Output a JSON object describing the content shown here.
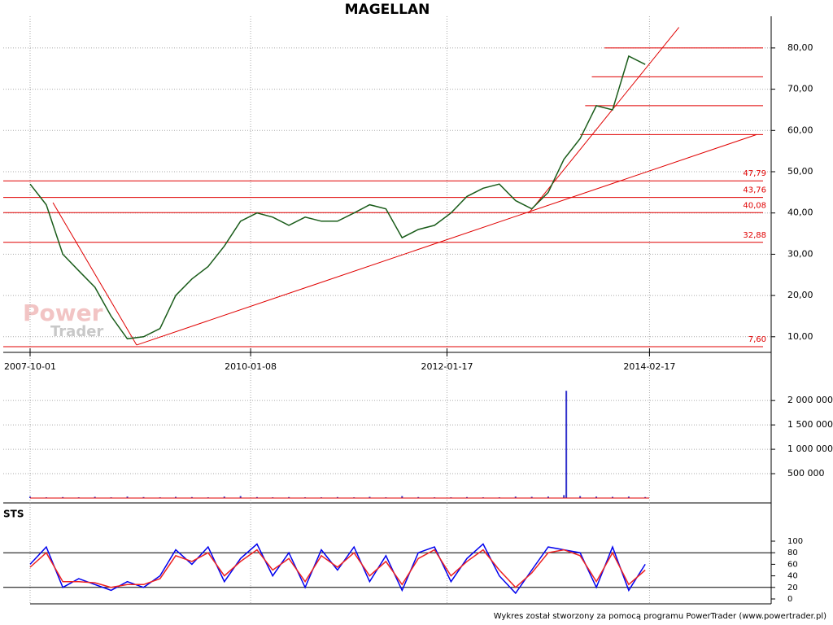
{
  "chart_data": [
    {
      "type": "line",
      "title": "MAGELLAN",
      "color": "#1a5c1a",
      "x": [
        "2007-10-01",
        "2007-12-01",
        "2008-02-01",
        "2008-04-01",
        "2008-06-01",
        "2008-08-01",
        "2008-10-01",
        "2008-12-01",
        "2009-02-01",
        "2009-04-01",
        "2009-06-01",
        "2009-08-01",
        "2009-10-01",
        "2009-12-01",
        "2010-02-01",
        "2010-04-01",
        "2010-06-01",
        "2010-08-01",
        "2010-10-01",
        "2010-12-01",
        "2011-02-01",
        "2011-04-01",
        "2011-06-01",
        "2011-08-01",
        "2011-10-01",
        "2011-12-01",
        "2012-02-01",
        "2012-04-01",
        "2012-06-01",
        "2012-08-01",
        "2012-10-01",
        "2012-12-01",
        "2013-02-01",
        "2013-04-01",
        "2013-06-01",
        "2013-08-01",
        "2013-10-01",
        "2013-12-01",
        "2014-02-01"
      ],
      "values": [
        47,
        42,
        30,
        26,
        22,
        15,
        9.5,
        10,
        12,
        20,
        24,
        27,
        32,
        38,
        40,
        39,
        37,
        39,
        38,
        38,
        40,
        42,
        41,
        34,
        36,
        37,
        40,
        44,
        46,
        47,
        43,
        41,
        45,
        53,
        58,
        66,
        65,
        78,
        76
      ],
      "xlim": [
        "2007-06-22",
        "2015-05-21"
      ],
      "xticks": [
        "2007-10-01",
        "2010-01-08",
        "2012-01-17",
        "2014-02-17"
      ],
      "ylim": [
        7.2,
        85.7
      ],
      "yticks": [
        {
          "value": 10,
          "label": "10,00"
        },
        {
          "value": 20,
          "label": "20,00"
        },
        {
          "value": 30,
          "label": "30,00"
        },
        {
          "value": 40,
          "label": "40,00"
        },
        {
          "value": 50,
          "label": "50,00"
        },
        {
          "value": 60,
          "label": "60,00"
        },
        {
          "value": 70,
          "label": "70,00"
        },
        {
          "value": 80,
          "label": "80,00"
        }
      ],
      "grid": true,
      "levels": [
        {
          "value": 47.79,
          "label": "47,79"
        },
        {
          "value": 43.76,
          "label": "43,76"
        },
        {
          "value": 40.08,
          "label": "40,08"
        },
        {
          "value": 32.88,
          "label": "32,88"
        },
        {
          "value": 7.6,
          "label": "7,60"
        }
      ],
      "resistance": [
        {
          "value": 80,
          "from": "2013-09-01"
        },
        {
          "value": 73,
          "from": "2013-07-15"
        },
        {
          "value": 66,
          "from": "2013-06-20"
        },
        {
          "value": 59,
          "from": "2013-06-01"
        }
      ],
      "trendlines": [
        [
          [
            "2007-12-26",
            42.5
          ],
          [
            "2008-11-05",
            8
          ]
        ],
        [
          [
            "2008-11-05",
            8
          ],
          [
            "2015-03-27",
            59
          ]
        ],
        [
          [
            "2012-11-20",
            40
          ],
          [
            "2014-06-08",
            85
          ]
        ]
      ],
      "line_color": "#e00000"
    },
    {
      "type": "bar",
      "color": "#3333cc",
      "x": [
        "2007-10-01",
        "2007-12-01",
        "2008-02-01",
        "2008-04-01",
        "2008-06-01",
        "2008-08-01",
        "2008-10-01",
        "2008-12-01",
        "2009-02-01",
        "2009-04-01",
        "2009-06-01",
        "2009-08-01",
        "2009-10-01",
        "2009-12-01",
        "2010-02-01",
        "2010-04-01",
        "2010-06-01",
        "2010-08-01",
        "2010-10-01",
        "2010-12-01",
        "2011-02-01",
        "2011-04-01",
        "2011-06-01",
        "2011-08-01",
        "2011-10-01",
        "2011-12-01",
        "2012-02-01",
        "2012-04-01",
        "2012-06-01",
        "2012-08-01",
        "2012-10-01",
        "2012-12-01",
        "2013-02-01",
        "2013-04-01",
        "2013-04-10",
        "2013-06-01",
        "2013-08-01",
        "2013-10-01",
        "2013-12-01",
        "2014-02-01"
      ],
      "values": [
        30000,
        15000,
        20000,
        15000,
        25000,
        15000,
        30000,
        20000,
        15000,
        25000,
        20000,
        15000,
        30000,
        40000,
        20000,
        15000,
        20000,
        15000,
        15000,
        20000,
        15000,
        25000,
        15000,
        40000,
        20000,
        15000,
        15000,
        20000,
        15000,
        15000,
        30000,
        25000,
        30000,
        60000,
        2200000,
        40000,
        30000,
        25000,
        30000,
        20000
      ],
      "ylim": [
        0,
        2220000
      ],
      "yticks": [
        {
          "value": 500000,
          "label": "500 000"
        },
        {
          "value": 1000000,
          "label": "1 000 000"
        },
        {
          "value": 1500000,
          "label": "1 500 000"
        },
        {
          "value": 2000000,
          "label": "2 000 000"
        }
      ]
    },
    {
      "type": "line",
      "title": "STS",
      "x": [
        "2007-10-01",
        "2007-12-01",
        "2008-02-01",
        "2008-04-01",
        "2008-06-01",
        "2008-08-01",
        "2008-10-01",
        "2008-12-01",
        "2009-02-01",
        "2009-04-01",
        "2009-06-01",
        "2009-08-01",
        "2009-10-01",
        "2009-12-01",
        "2010-02-01",
        "2010-04-01",
        "2010-06-01",
        "2010-08-01",
        "2010-10-01",
        "2010-12-01",
        "2011-02-01",
        "2011-04-01",
        "2011-06-01",
        "2011-08-01",
        "2011-10-01",
        "2011-12-01",
        "2012-02-01",
        "2012-04-01",
        "2012-06-01",
        "2012-08-01",
        "2012-10-01",
        "2012-12-01",
        "2013-02-01",
        "2013-04-01",
        "2013-06-01",
        "2013-08-01",
        "2013-10-01",
        "2013-12-01",
        "2014-02-01"
      ],
      "series": [
        {
          "color": "#0000ee",
          "values": [
            60,
            90,
            20,
            35,
            25,
            15,
            30,
            20,
            40,
            85,
            60,
            90,
            30,
            70,
            95,
            40,
            80,
            20,
            85,
            50,
            90,
            30,
            75,
            15,
            80,
            90,
            30,
            70,
            95,
            40,
            10,
            50,
            90,
            85,
            80,
            20,
            90,
            15,
            60
          ]
        },
        {
          "color": "#ee2222",
          "values": [
            55,
            80,
            30,
            30,
            28,
            20,
            25,
            25,
            35,
            75,
            65,
            80,
            40,
            65,
            85,
            50,
            70,
            30,
            75,
            55,
            80,
            40,
            65,
            25,
            70,
            85,
            40,
            65,
            85,
            50,
            20,
            45,
            80,
            85,
            75,
            30,
            80,
            25,
            50
          ]
        }
      ],
      "ylim": [
        0,
        100
      ],
      "yticks": [
        0,
        20,
        40,
        60,
        80,
        100
      ],
      "bands": [
        20,
        80
      ]
    }
  ],
  "watermark": [
    "Power",
    "Trader"
  ],
  "footer": "Wykres został stworzony za pomocą programu PowerTrader (www.powertrader.pl)"
}
